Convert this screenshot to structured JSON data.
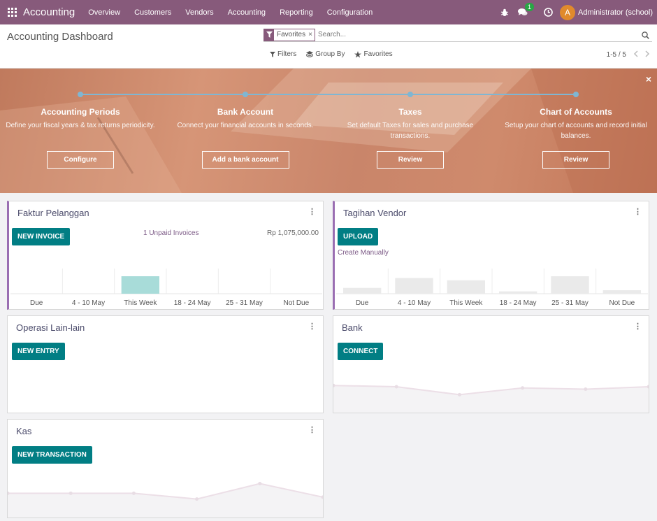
{
  "navbar": {
    "app_name": "Accounting",
    "menu": [
      "Overview",
      "Customers",
      "Vendors",
      "Accounting",
      "Reporting",
      "Configuration"
    ],
    "messages_badge": "1",
    "avatar_letter": "A",
    "user": "Administrator (school)",
    "color": "#875a7b"
  },
  "control_panel": {
    "title": "Accounting Dashboard",
    "facet": "Favorites",
    "facet_close": "×",
    "search_placeholder": "Search...",
    "filters": "Filters",
    "group_by": "Group By",
    "favorites": "Favorites",
    "pager": "1-5 / 5"
  },
  "onboarding": {
    "close": "×",
    "steps": [
      {
        "title": "Accounting Periods",
        "desc": "Define your fiscal years & tax returns periodicity.",
        "button": "Configure"
      },
      {
        "title": "Bank Account",
        "desc": "Connect your financial accounts in seconds.",
        "button": "Add a bank account"
      },
      {
        "title": "Taxes",
        "desc": "Set default Taxes for sales and purchase transactions.",
        "button": "Review"
      },
      {
        "title": "Chart of Accounts",
        "desc": "Setup your chart of accounts and record initial balances.",
        "button": "Review"
      }
    ]
  },
  "journals": {
    "sales": {
      "title": "Faktur Pelanggan",
      "button": "NEW INVOICE",
      "unpaid_label": "1 Unpaid Invoices",
      "unpaid_amount": "Rp 1,075,000.00",
      "bars": {
        "categories": [
          "Due",
          "4 - 10 May",
          "This Week",
          "18 - 24 May",
          "25 - 31 May",
          "Not Due"
        ],
        "values": [
          0,
          0,
          1075000,
          0,
          0,
          0
        ],
        "color": "#a8dcd9"
      }
    },
    "purchase": {
      "title": "Tagihan Vendor",
      "button": "UPLOAD",
      "link": "Create Manually",
      "bars": {
        "categories": [
          "Due",
          "4 - 10 May",
          "This Week",
          "18 - 24 May",
          "25 - 31 May",
          "Not Due"
        ],
        "values": [
          10,
          27,
          23,
          4,
          30,
          6
        ],
        "color": "#eaeaea"
      }
    },
    "misc": {
      "title": "Operasi Lain-lain",
      "button": "NEW ENTRY"
    },
    "bank": {
      "title": "Bank",
      "button": "CONNECT",
      "line": [
        35,
        33,
        20,
        31,
        29,
        33
      ]
    },
    "cash": {
      "title": "Kas",
      "button": "NEW TRANSACTION",
      "line": [
        29,
        29,
        29,
        20,
        44,
        23
      ]
    }
  }
}
